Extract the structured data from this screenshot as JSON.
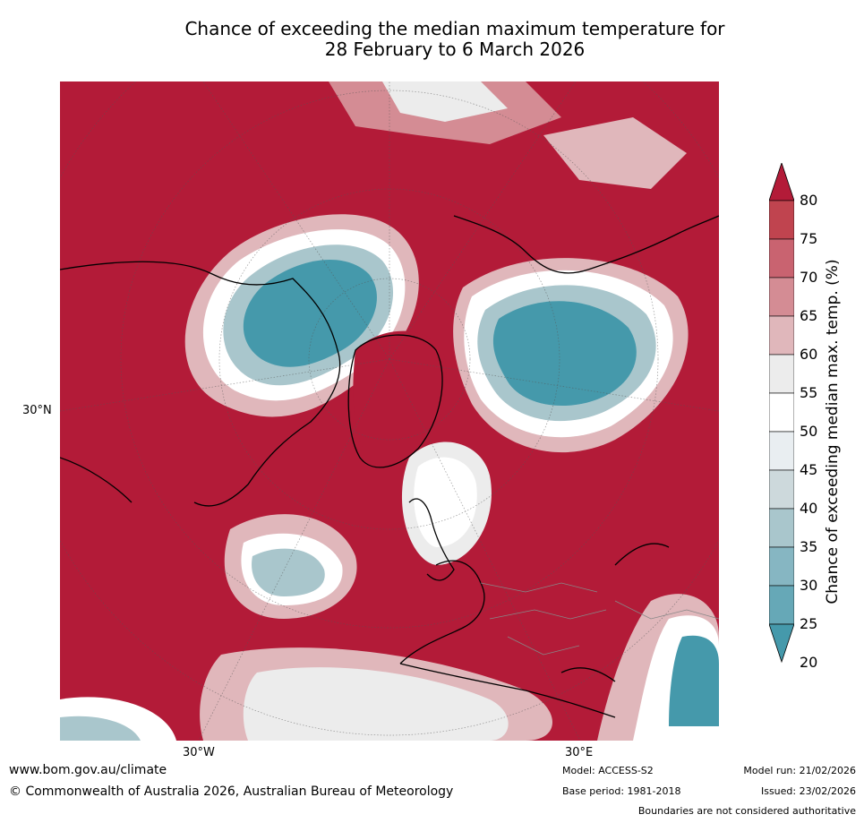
{
  "title": {
    "line1": "Chance of exceeding the median maximum temperature for",
    "line2": "28 February to 6 March 2026"
  },
  "map": {
    "lat_label": "30°N",
    "lon_labels": [
      "30°W",
      "30°E"
    ]
  },
  "colorbar": {
    "label": "Chance of exceeding median max. temp. (%)",
    "ticks": [
      "80",
      "75",
      "70",
      "65",
      "60",
      "55",
      "50",
      "45",
      "40",
      "35",
      "30",
      "25",
      "20"
    ],
    "colors": [
      "#b31b38",
      "#c0444f",
      "#c96370",
      "#d48c94",
      "#e0b7bb",
      "#ececec",
      "#ffffff",
      "#e9eef1",
      "#cdd9dc",
      "#a9c6cc",
      "#86b6c2",
      "#66a8b7",
      "#4599ab"
    ]
  },
  "footer": {
    "url": "www.bom.gov.au/climate",
    "copyright": "© Commonwealth of Australia 2026, Australian Bureau of Meteorology",
    "model": "Model: ACCESS-S2",
    "base_period": "Base period: 1981-2018",
    "model_run": "Model run: 21/02/2026",
    "issued": "Issued: 23/02/2026",
    "disclaimer": "Boundaries are not considered authoritative"
  }
}
